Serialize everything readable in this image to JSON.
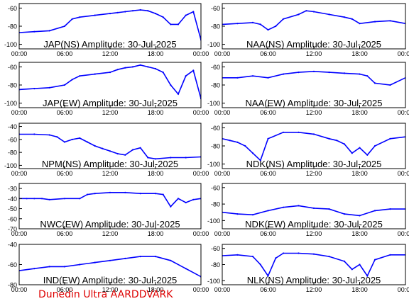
{
  "footer_text": "Dunedin Ultra AARDDVARK",
  "colors": {
    "series": "#0000ff",
    "axes": "#000000",
    "footer": "#dd0000",
    "background": "#ffffff"
  },
  "x_ticks": [
    "00:00",
    "06:00",
    "12:00",
    "18:00",
    "00:00"
  ],
  "chart_data": [
    {
      "type": "line",
      "title": "JAP(NS) Amplitude: 30-Jul-2025",
      "xlim": [
        0,
        24
      ],
      "ylim": [
        -105,
        -55
      ],
      "yticks": [
        -60,
        -80,
        -100
      ],
      "xlabel": "",
      "ylabel": "",
      "x": [
        0,
        2,
        4,
        6,
        7,
        8,
        10,
        12,
        13,
        14,
        15,
        16,
        17,
        18,
        19,
        20,
        21,
        22,
        23,
        24
      ],
      "values": [
        -87,
        -86,
        -85,
        -80,
        -72,
        -70,
        -68,
        -66,
        -65,
        -64,
        -63,
        -62,
        -63,
        -66,
        -70,
        -78,
        -78,
        -68,
        -64,
        -95
      ]
    },
    {
      "type": "line",
      "title": "NAA(NS) Amplitude: 30-Jul-2025",
      "xlim": [
        0,
        24
      ],
      "ylim": [
        -105,
        -55
      ],
      "yticks": [
        -60,
        -80,
        -100
      ],
      "xlabel": "",
      "ylabel": "",
      "x": [
        0,
        2,
        4,
        5,
        6,
        7,
        8,
        10,
        11,
        12,
        14,
        16,
        17,
        18,
        20,
        22,
        24
      ],
      "values": [
        -78,
        -77,
        -76,
        -78,
        -84,
        -80,
        -72,
        -67,
        -63,
        -64,
        -67,
        -70,
        -72,
        -77,
        -75,
        -74,
        -77
      ]
    },
    {
      "type": "line",
      "title": "JAP(EW) Amplitude: 30-Jul-2025",
      "xlim": [
        0,
        24
      ],
      "ylim": [
        -105,
        -55
      ],
      "yticks": [
        -60,
        -80,
        -100
      ],
      "xlabel": "",
      "ylabel": "",
      "x": [
        0,
        2,
        4,
        6,
        7,
        8,
        10,
        12,
        13,
        14,
        15,
        16,
        17,
        18,
        19,
        20,
        21,
        22,
        23,
        24
      ],
      "values": [
        -85,
        -84,
        -83,
        -80,
        -74,
        -70,
        -68,
        -66,
        -63,
        -61,
        -60,
        -58,
        -60,
        -62,
        -66,
        -80,
        -90,
        -70,
        -64,
        -95
      ]
    },
    {
      "type": "line",
      "title": "NAA(EW) Amplitude: 30-Jul-2025",
      "xlim": [
        0,
        24
      ],
      "ylim": [
        -105,
        -55
      ],
      "yticks": [
        -60,
        -80,
        -100
      ],
      "xlabel": "",
      "ylabel": "",
      "x": [
        0,
        2,
        4,
        6,
        8,
        10,
        12,
        14,
        16,
        18,
        19,
        20,
        22,
        24
      ],
      "values": [
        -72,
        -72,
        -70,
        -72,
        -68,
        -66,
        -65,
        -66,
        -67,
        -68,
        -70,
        -78,
        -80,
        -72
      ]
    },
    {
      "type": "line",
      "title": "NPM(NS) Amplitude: 30-Jul-2025",
      "xlim": [
        0,
        24
      ],
      "ylim": [
        -105,
        -35
      ],
      "yticks": [
        -40,
        -60,
        -80,
        -100
      ],
      "xlabel": "",
      "ylabel": "",
      "x": [
        0,
        2,
        4,
        5,
        6,
        7,
        8,
        9,
        10,
        11,
        12,
        13,
        14,
        15,
        16,
        17,
        18,
        20,
        22,
        24
      ],
      "values": [
        -52,
        -52,
        -53,
        -56,
        -64,
        -60,
        -58,
        -64,
        -70,
        -74,
        -78,
        -82,
        -84,
        -76,
        -73,
        -88,
        -90,
        -88,
        -88,
        -87
      ]
    },
    {
      "type": "line",
      "title": "NDK(NS) Amplitude: 30-Jul-2025",
      "xlim": [
        0,
        24
      ],
      "ylim": [
        -105,
        -55
      ],
      "yticks": [
        -60,
        -80,
        -100
      ],
      "xlabel": "",
      "ylabel": "",
      "x": [
        0,
        1,
        2,
        3,
        4,
        5,
        6,
        8,
        10,
        12,
        14,
        15,
        16,
        17,
        18,
        19,
        20,
        22,
        24
      ],
      "values": [
        -72,
        -74,
        -76,
        -80,
        -88,
        -96,
        -72,
        -65,
        -65,
        -67,
        -72,
        -74,
        -78,
        -88,
        -82,
        -90,
        -80,
        -72,
        -70
      ]
    },
    {
      "type": "line",
      "title": "NWC(EW) Amplitude: 30-Jul-2025",
      "xlim": [
        0,
        24
      ],
      "ylim": [
        -70,
        -25
      ],
      "yticks": [
        -30,
        -40,
        -50,
        -60,
        -70
      ],
      "xlabel": "",
      "ylabel": "",
      "x": [
        0,
        1,
        2,
        3,
        4,
        6,
        8,
        9,
        10,
        12,
        14,
        16,
        18,
        19,
        20,
        21,
        22,
        23,
        24
      ],
      "values": [
        -40,
        -40,
        -40,
        -40,
        -41,
        -40,
        -40,
        -36,
        -35,
        -34,
        -34,
        -35,
        -35,
        -36,
        -48,
        -40,
        -44,
        -41,
        -40
      ]
    },
    {
      "type": "line",
      "title": "NDK(EW) Amplitude: 30-Jul-2025",
      "xlim": [
        0,
        24
      ],
      "ylim": [
        -110,
        -55
      ],
      "yticks": [
        -60,
        -80,
        -100
      ],
      "xlabel": "",
      "ylabel": "",
      "x": [
        0,
        2,
        4,
        6,
        8,
        10,
        12,
        14,
        16,
        18,
        20,
        22,
        24
      ],
      "values": [
        -90,
        -92,
        -93,
        -88,
        -84,
        -82,
        -85,
        -86,
        -92,
        -94,
        -88,
        -86,
        -86
      ]
    },
    {
      "type": "line",
      "title": "IND(EW) Amplitude: 30-Jul-2025",
      "xlim": [
        0,
        24
      ],
      "ylim": [
        -80,
        -40
      ],
      "yticks": [
        -40,
        -60,
        -80
      ],
      "xlabel": "",
      "ylabel": "",
      "x": [
        0,
        2,
        4,
        6,
        8,
        10,
        12,
        14,
        16,
        18,
        20,
        22,
        24
      ],
      "values": [
        -66,
        -64,
        -62,
        -62,
        -60,
        -58,
        -56,
        -54,
        -52,
        -52,
        -56,
        -64,
        -72
      ]
    },
    {
      "type": "line",
      "title": "NLK(NS) Amplitude: 30-Jul-2025",
      "xlim": [
        0,
        24
      ],
      "ylim": [
        -105,
        -55
      ],
      "yticks": [
        -60,
        -80,
        -100
      ],
      "xlabel": "",
      "ylabel": "",
      "x": [
        0,
        2,
        4,
        5,
        6,
        7,
        8,
        10,
        12,
        14,
        16,
        17,
        18,
        19,
        20,
        22,
        24
      ],
      "values": [
        -69,
        -68,
        -70,
        -80,
        -94,
        -72,
        -66,
        -66,
        -67,
        -70,
        -76,
        -86,
        -80,
        -94,
        -74,
        -68,
        -68
      ]
    }
  ]
}
